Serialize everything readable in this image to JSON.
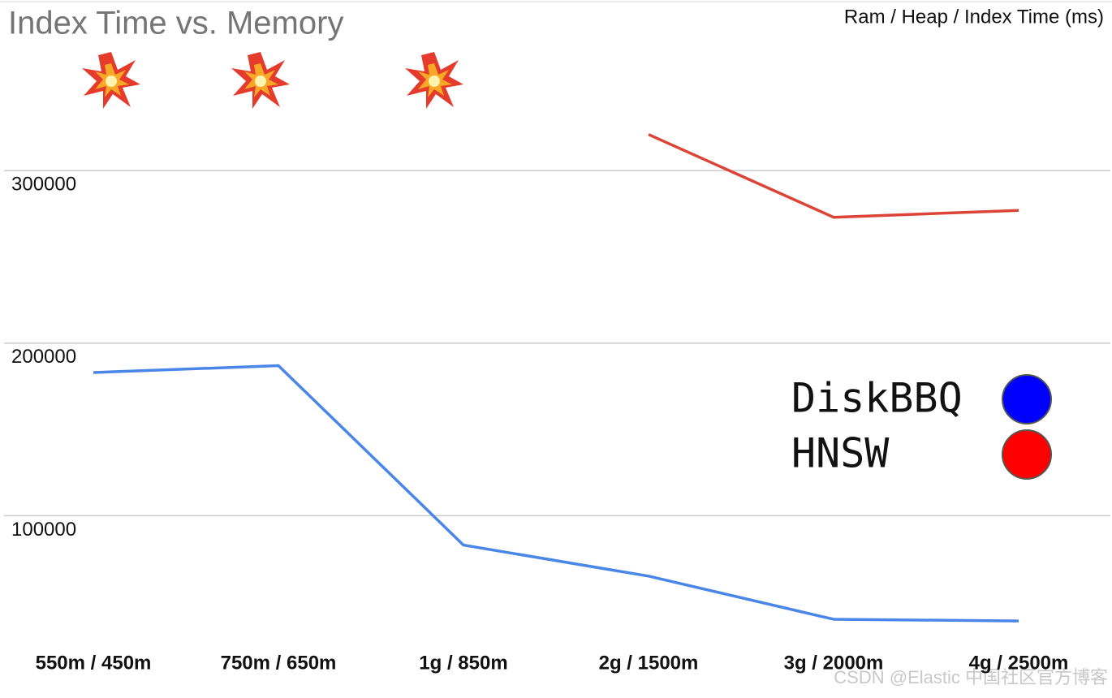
{
  "chart_data": {
    "type": "line",
    "title": "Index Time vs. Memory",
    "subtitle": "Ram / Heap / Index Time (ms)",
    "categories": [
      "550m / 450m",
      "750m / 650m",
      "1g / 850m",
      "2g / 1500m",
      "3g / 2000m",
      "4g / 2500m"
    ],
    "series": [
      {
        "name": "DiskBBQ",
        "color": "#4a86e8",
        "legend_color": "#0000ff",
        "values": [
          183000,
          187000,
          83000,
          65000,
          40000,
          39000
        ]
      },
      {
        "name": "HNSW",
        "color": "#db4437",
        "legend_color": "#ff0000",
        "values": [
          null,
          null,
          null,
          321000,
          273000,
          277000
        ]
      }
    ],
    "ylim": [
      0,
      390000
    ],
    "yticks": [
      100000,
      200000,
      300000
    ],
    "grid": true,
    "legend": "right",
    "watermark": "CSDN @Elastic 中国社区官方博客"
  }
}
